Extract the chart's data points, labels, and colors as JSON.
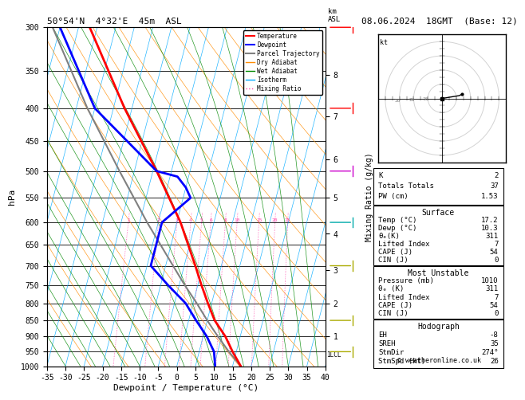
{
  "title_left": "50°54'N  4°32'E  45m  ASL",
  "title_right": "08.06.2024  18GMT  (Base: 12)",
  "xlabel": "Dewpoint / Temperature (°C)",
  "ylabel_left": "hPa",
  "pressure_levels": [
    300,
    350,
    400,
    450,
    500,
    550,
    600,
    650,
    700,
    750,
    800,
    850,
    900,
    950,
    1000
  ],
  "temp_xlim": [
    -35,
    40
  ],
  "temp_profile_pressure": [
    1000,
    950,
    900,
    850,
    800,
    750,
    700,
    600,
    500,
    400,
    300
  ],
  "temp_profile_temp": [
    17.2,
    14.0,
    11.0,
    7.0,
    4.0,
    1.0,
    -2.0,
    -9.0,
    -19.0,
    -32.0,
    -47.0
  ],
  "dewp_profile_pressure": [
    1000,
    950,
    900,
    850,
    800,
    750,
    700,
    600,
    550,
    530,
    510,
    500,
    400,
    300
  ],
  "dewp_profile_dewp": [
    10.3,
    9.0,
    6.0,
    2.0,
    -2.0,
    -8.0,
    -14.0,
    -14.0,
    -8.0,
    -10.0,
    -13.0,
    -19.0,
    -40.0,
    -55.0
  ],
  "parcel_profile_pressure": [
    1000,
    950,
    900,
    875,
    850,
    800,
    750,
    700,
    600,
    500,
    400,
    300
  ],
  "parcel_profile_temp": [
    17.2,
    13.0,
    9.0,
    7.0,
    5.0,
    1.0,
    -3.5,
    -8.0,
    -18.0,
    -29.0,
    -42.0,
    -57.0
  ],
  "stats_K": 2,
  "stats_TT": 37,
  "stats_PW": 1.53,
  "stats_surf_temp": 17.2,
  "stats_surf_dewp": 10.3,
  "stats_surf_theta_e": 311,
  "stats_surf_li": 7,
  "stats_surf_cape": 54,
  "stats_surf_cin": 0,
  "stats_mu_pres": 1010,
  "stats_mu_theta_e": 311,
  "stats_mu_li": 7,
  "stats_mu_cape": 54,
  "stats_mu_cin": 0,
  "stats_eh": -8,
  "stats_sreh": 35,
  "stats_stmdir": 274,
  "stats_stmspd": 26,
  "mixing_ratio_values": [
    1,
    2,
    3,
    4,
    5,
    6,
    8,
    10,
    15,
    20,
    25
  ],
  "km_asl_ticks": [
    1,
    2,
    3,
    4,
    5,
    6,
    7,
    8
  ],
  "km_asl_pressures": [
    900,
    800,
    710,
    625,
    550,
    480,
    412,
    355
  ],
  "lcl_pressure": 960,
  "color_temp": "#ff0000",
  "color_dewp": "#0000ff",
  "color_parcel": "#808080",
  "color_dry": "#ff8c00",
  "color_wet": "#008800",
  "color_iso": "#00aaff",
  "color_mr": "#ff44aa",
  "color_grid": "#000000"
}
